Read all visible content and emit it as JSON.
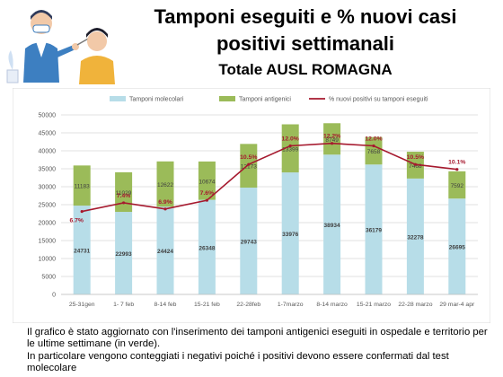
{
  "header": {
    "title_line1": "Tamponi eseguiti e % nuovi casi",
    "title_line2": "positivi settimanali",
    "subtitle": "Totale AUSL ROMAGNA"
  },
  "illustration": {
    "icon": "swab-test-icon"
  },
  "notes": {
    "line1": "Il grafico è stato aggiornato con l'inserimento dei tamponi antigenici eseguiti in ospedale e territorio per le ultime settimane (in verde).",
    "line2": "In particolare vengono conteggiati i negativi poiché i positivi devono essere confermati dal test molecolare"
  },
  "chart_data": {
    "type": "bar",
    "stacked": true,
    "categories": [
      "25-31gen",
      "1- 7 feb",
      "8-14 feb",
      "15-21 feb",
      "22-28feb",
      "1-7marzo",
      "8-14 marzo",
      "15-21 marzo",
      "22-28 marzo",
      "29 mar-4 apr"
    ],
    "series": [
      {
        "name": "Tamponi molecolari",
        "color": "#b7dde8",
        "values": [
          24731,
          22993,
          24424,
          26348,
          29743,
          33976,
          38934,
          36179,
          32278,
          26695
        ],
        "labels": [
          "24731",
          "22993",
          "24424",
          "26348",
          "29743",
          "33976",
          "38934",
          "36179",
          "32278",
          "26695"
        ]
      },
      {
        "name": "Tamponi antigenici",
        "color": "#9bbb59",
        "values": [
          11183,
          11029,
          12622,
          10674,
          12173,
          13399,
          8749,
          7658,
          7468,
          7592
        ],
        "labels": [
          "11183",
          "11029",
          "12622",
          "10674",
          "12173",
          "13399",
          "8749",
          "7658",
          "7468",
          "7592"
        ]
      }
    ],
    "line_series": {
      "name": "% nuovi positivi su tamponi eseguiti",
      "color": "#a6192e",
      "values": [
        6.7,
        7.4,
        6.9,
        7.6,
        10.5,
        12.0,
        12.2,
        12.0,
        10.5,
        10.1
      ],
      "labels": [
        "6.7%",
        "7.4%",
        "6.9%",
        "7.6%",
        "10.5%",
        "12.0%",
        "12.2%",
        "12.0%",
        "10.5%",
        "10.1%"
      ],
      "ylim": [
        0,
        14.5
      ]
    },
    "yticks": [
      "0",
      "5000",
      "10000",
      "15000",
      "20000",
      "25000",
      "30000",
      "35000",
      "40000",
      "45000",
      "50000"
    ],
    "ylim": [
      0,
      50000
    ],
    "grid": true,
    "legend": "top"
  }
}
